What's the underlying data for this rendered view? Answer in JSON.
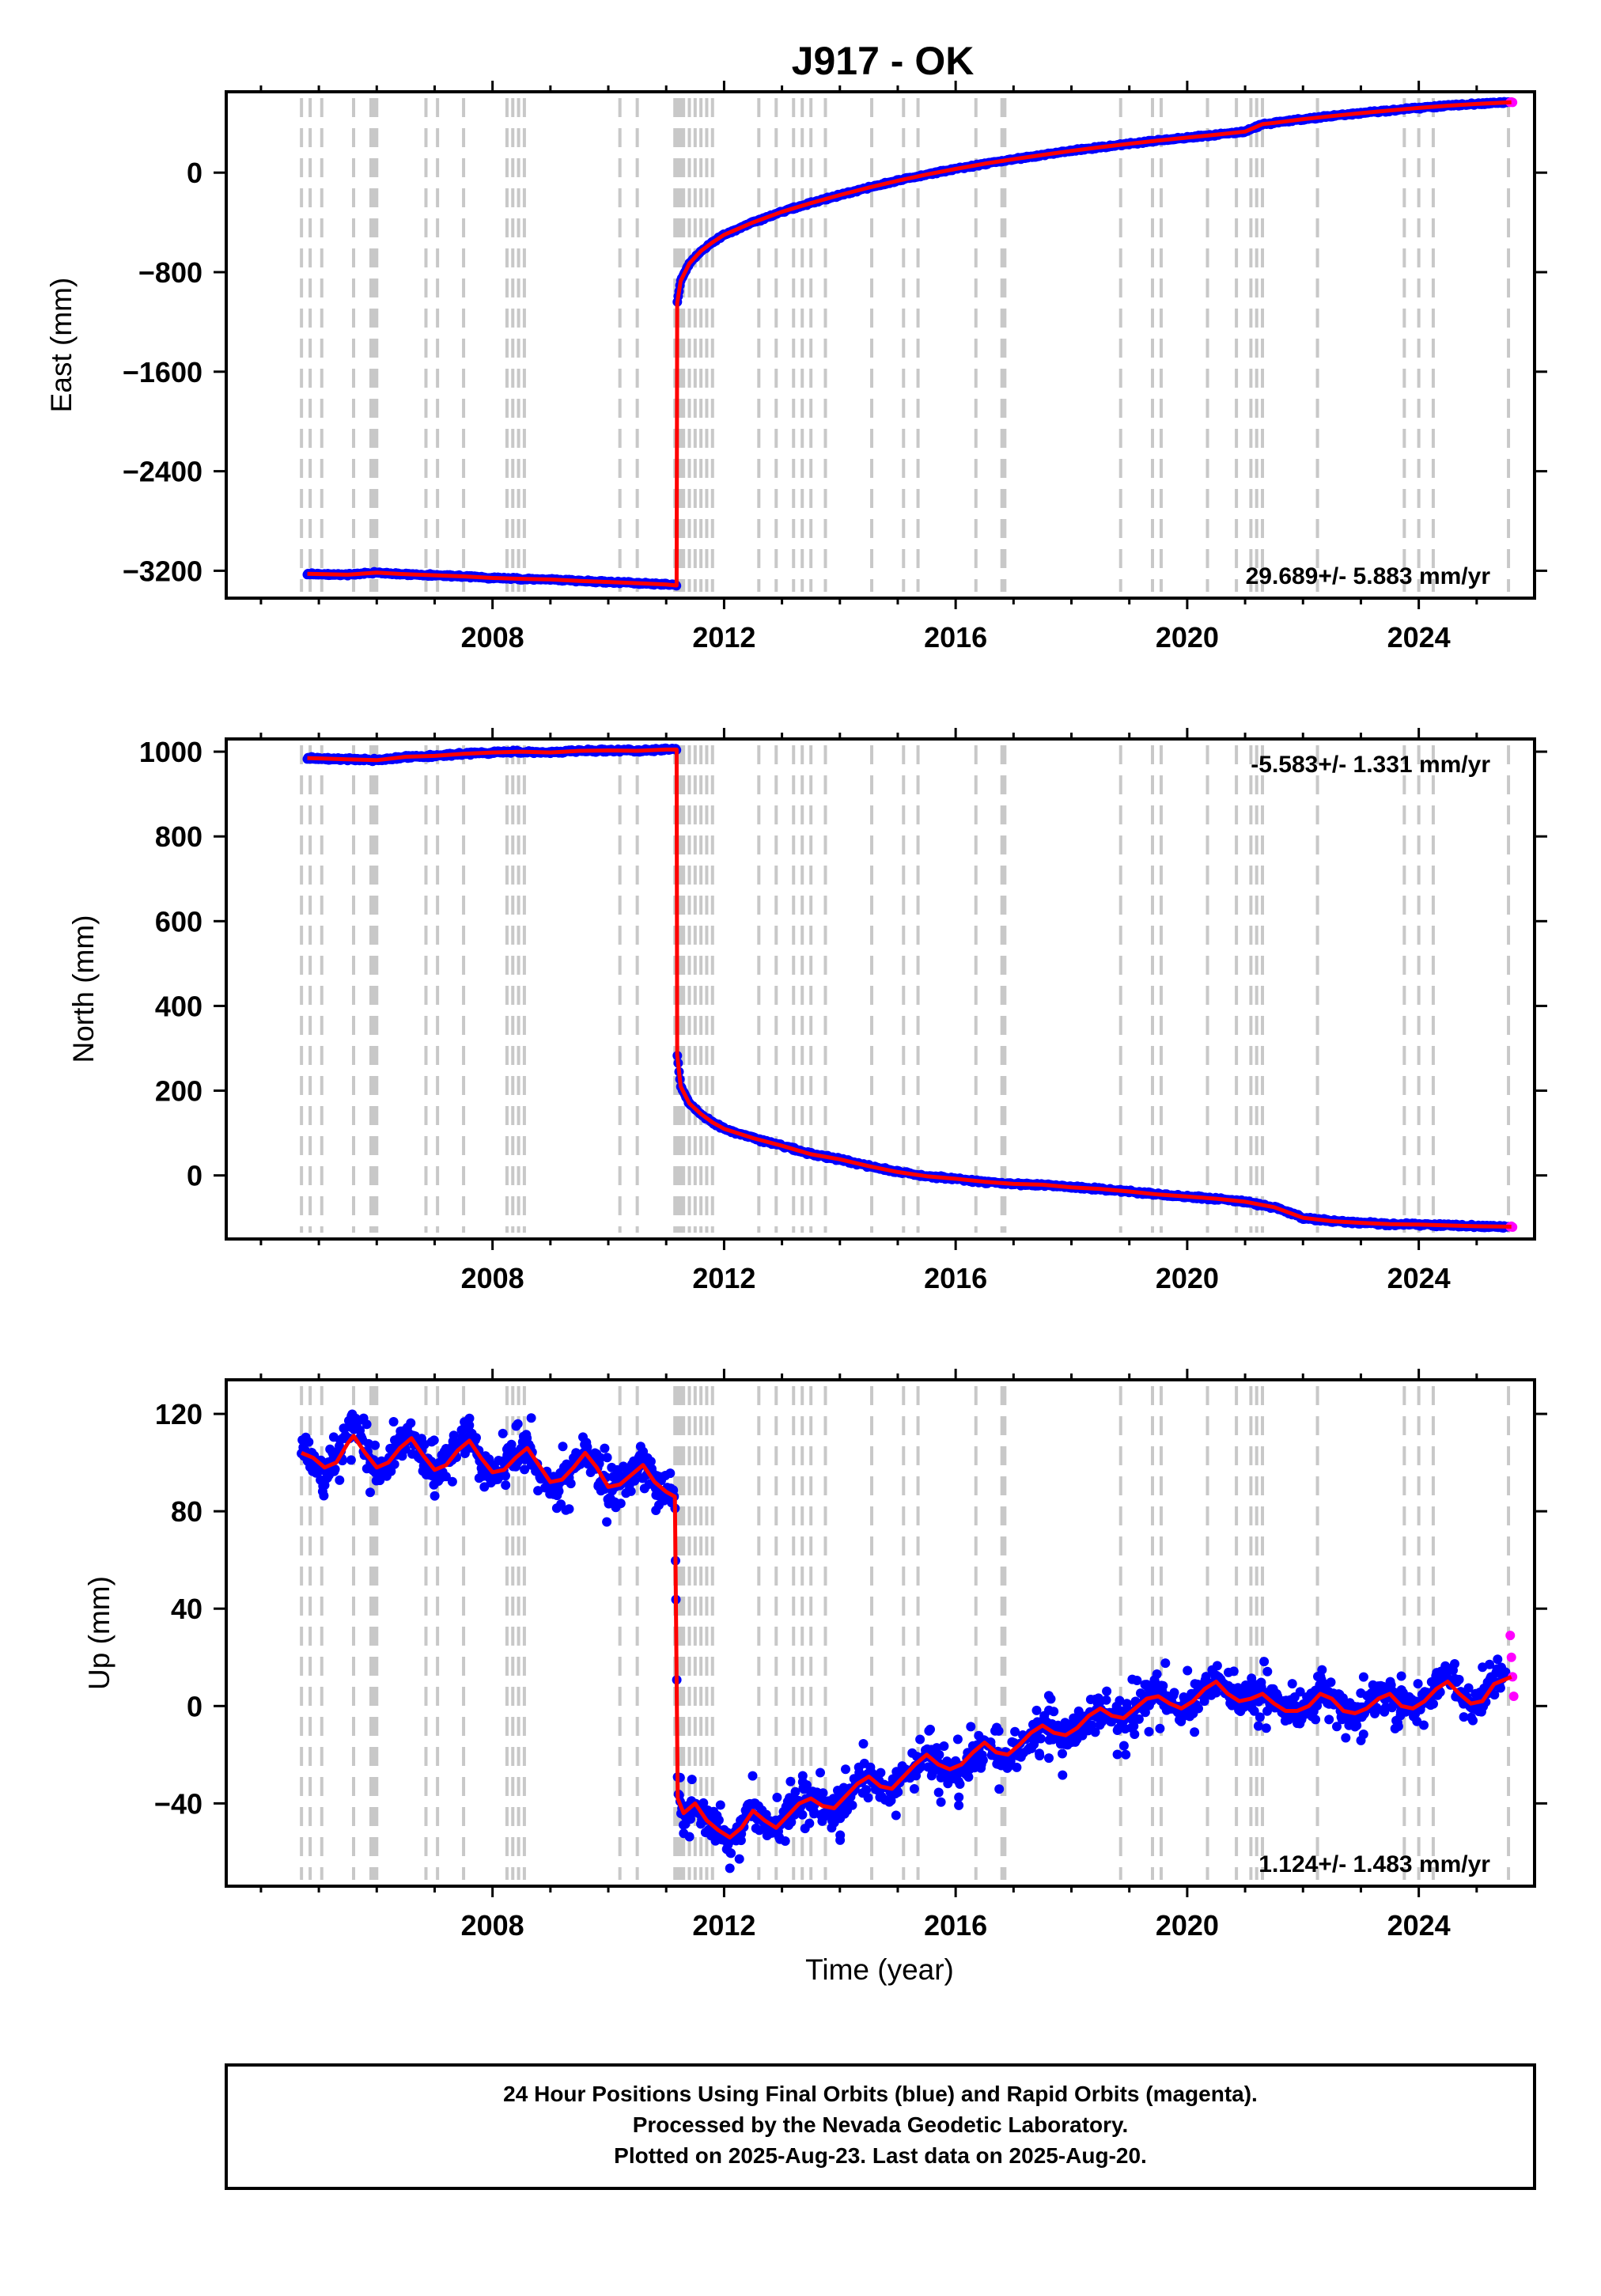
{
  "title": "J917 - OK",
  "x_axis_label": "Time (year)",
  "footer_lines": [
    "24 Hour Positions Using Final Orbits (blue) and Rapid Orbits (magenta).",
    "Processed by the Nevada Geodetic Laboratory.",
    "Plotted on 2025-Aug-23. Last data on 2025-Aug-20."
  ],
  "colors": {
    "final_orbits": "#0000ff",
    "rapid_orbits": "#ff00ff",
    "model_fit": "#ff0000",
    "events": "#c8c8c8",
    "frame": "#000000"
  },
  "chart_data": [
    {
      "type": "scatter",
      "panel": "east",
      "ylabel": "East (mm)",
      "xlabel": "",
      "xlim": [
        2003.4,
        2026.0
      ],
      "ylim": [
        -3420,
        650
      ],
      "xticks": [
        2008,
        2012,
        2016,
        2020,
        2024
      ],
      "xtick_labels": [
        "2008",
        "2012",
        "2016",
        "2020",
        "2024"
      ],
      "yticks": [
        0,
        -800,
        -1600,
        -2400,
        -3200
      ],
      "ytick_labels": [
        "0",
        "−800",
        "−1600",
        "−2400",
        "−3200"
      ],
      "rate_label": "29.689+/- 5.883 mm/yr",
      "rate_position": "bottom-right",
      "grid": false,
      "series": [
        {
          "role": "final",
          "x": [
            2004.8,
            2005.5,
            2006.0,
            2006.5,
            2007.0,
            2007.5,
            2008.0,
            2008.5,
            2009.0,
            2009.5,
            2010.0,
            2010.5,
            2011.0,
            2011.18,
            2011.19,
            2011.25,
            2011.4,
            2011.6,
            2011.8,
            2012.0,
            2012.5,
            2013.0,
            2013.5,
            2014.0,
            2014.5,
            2015.0,
            2015.5,
            2016.0,
            2016.5,
            2017.0,
            2017.5,
            2018.0,
            2018.5,
            2019.0,
            2019.5,
            2020.0,
            2020.5,
            2021.0,
            2021.3,
            2021.5,
            2022.0,
            2022.5,
            2023.0,
            2023.5,
            2024.0,
            2024.5,
            2025.0,
            2025.55
          ],
          "y": [
            -3225,
            -3232,
            -3215,
            -3228,
            -3236,
            -3245,
            -3258,
            -3265,
            -3270,
            -3282,
            -3290,
            -3300,
            -3310,
            -3318,
            -1050,
            -870,
            -730,
            -630,
            -560,
            -500,
            -400,
            -315,
            -245,
            -180,
            -120,
            -65,
            -15,
            30,
            72,
            108,
            142,
            175,
            205,
            232,
            258,
            282,
            305,
            330,
            390,
            400,
            430,
            455,
            478,
            500,
            520,
            538,
            552,
            565
          ]
        },
        {
          "role": "rapid",
          "x": [
            2025.58,
            2025.6,
            2025.62
          ],
          "y": [
            566,
            568,
            565
          ]
        },
        {
          "role": "model",
          "x": [
            2004.8,
            2005.5,
            2006.0,
            2006.5,
            2007.0,
            2007.5,
            2008.0,
            2008.5,
            2009.0,
            2009.5,
            2010.0,
            2010.5,
            2011.0,
            2011.18,
            2011.19,
            2011.25,
            2011.4,
            2011.6,
            2011.8,
            2012.0,
            2012.5,
            2013.0,
            2013.5,
            2014.0,
            2014.5,
            2015.0,
            2015.5,
            2016.0,
            2016.5,
            2017.0,
            2017.5,
            2018.0,
            2018.5,
            2019.0,
            2019.5,
            2020.0,
            2020.5,
            2021.0,
            2021.3,
            2021.5,
            2022.0,
            2022.5,
            2023.0,
            2023.5,
            2024.0,
            2024.5,
            2025.0,
            2025.6
          ],
          "y": [
            -3225,
            -3232,
            -3215,
            -3228,
            -3236,
            -3245,
            -3258,
            -3265,
            -3270,
            -3282,
            -3290,
            -3300,
            -3310,
            -3318,
            -1050,
            -870,
            -730,
            -630,
            -560,
            -500,
            -400,
            -315,
            -245,
            -180,
            -120,
            -65,
            -15,
            30,
            72,
            108,
            142,
            175,
            205,
            232,
            258,
            282,
            305,
            330,
            390,
            400,
            430,
            455,
            478,
            500,
            520,
            538,
            552,
            566
          ]
        }
      ]
    },
    {
      "type": "scatter",
      "panel": "north",
      "ylabel": "North (mm)",
      "xlabel": "",
      "xlim": [
        2003.4,
        2026.0
      ],
      "ylim": [
        -150,
        1030
      ],
      "xticks": [
        2008,
        2012,
        2016,
        2020,
        2024
      ],
      "xtick_labels": [
        "2008",
        "2012",
        "2016",
        "2020",
        "2024"
      ],
      "yticks": [
        0,
        200,
        400,
        600,
        800,
        1000
      ],
      "ytick_labels": [
        "0",
        "200",
        "400",
        "600",
        "800",
        "1000"
      ],
      "rate_label": "-5.583+/- 1.331 mm/yr",
      "rate_position": "top-right",
      "grid": false,
      "series": [
        {
          "role": "final",
          "x": [
            2004.8,
            2005.5,
            2006.0,
            2006.5,
            2007.0,
            2007.5,
            2008.0,
            2008.5,
            2009.0,
            2009.5,
            2010.0,
            2010.5,
            2011.0,
            2011.18,
            2011.19,
            2011.25,
            2011.4,
            2011.6,
            2011.8,
            2012.0,
            2012.5,
            2013.0,
            2013.5,
            2014.0,
            2014.5,
            2015.0,
            2015.5,
            2016.0,
            2016.5,
            2017.0,
            2017.5,
            2018.0,
            2018.5,
            2019.0,
            2019.5,
            2020.0,
            2020.5,
            2021.0,
            2021.5,
            2022.0,
            2022.5,
            2023.0,
            2023.5,
            2024.0,
            2024.5,
            2025.0,
            2025.55
          ],
          "y": [
            985,
            982,
            980,
            988,
            990,
            995,
            998,
            1000,
            998,
            1002,
            1003,
            1002,
            1005,
            1005,
            285,
            210,
            170,
            145,
            125,
            110,
            88,
            70,
            50,
            38,
            22,
            8,
            -2,
            -8,
            -15,
            -20,
            -22,
            -28,
            -32,
            -38,
            -45,
            -50,
            -55,
            -62,
            -75,
            -100,
            -108,
            -112,
            -115,
            -116,
            -118,
            -120,
            -122
          ]
        },
        {
          "role": "rapid",
          "x": [
            2025.58,
            2025.6,
            2025.62
          ],
          "y": [
            -121,
            -120,
            -122
          ]
        },
        {
          "role": "model",
          "x": [
            2004.8,
            2005.5,
            2006.0,
            2006.5,
            2007.0,
            2007.5,
            2008.0,
            2008.5,
            2009.0,
            2009.5,
            2010.0,
            2010.5,
            2011.0,
            2011.18,
            2011.19,
            2011.25,
            2011.4,
            2011.6,
            2011.8,
            2012.0,
            2012.5,
            2013.0,
            2013.5,
            2014.0,
            2014.5,
            2015.0,
            2015.5,
            2016.0,
            2016.5,
            2017.0,
            2017.5,
            2018.0,
            2018.5,
            2019.0,
            2019.5,
            2020.0,
            2020.5,
            2021.0,
            2021.5,
            2022.0,
            2022.5,
            2023.0,
            2023.5,
            2024.0,
            2024.5,
            2025.0,
            2025.6
          ],
          "y": [
            985,
            982,
            980,
            988,
            990,
            995,
            998,
            1000,
            998,
            1002,
            1003,
            1002,
            1005,
            1005,
            285,
            210,
            170,
            145,
            125,
            110,
            88,
            70,
            50,
            38,
            22,
            8,
            -2,
            -8,
            -15,
            -20,
            -22,
            -28,
            -32,
            -38,
            -45,
            -50,
            -55,
            -62,
            -75,
            -100,
            -108,
            -112,
            -115,
            -116,
            -118,
            -120,
            -121
          ]
        }
      ]
    },
    {
      "type": "scatter",
      "panel": "up",
      "ylabel": "Up (mm)",
      "xlabel": "Time (year)",
      "xlim": [
        2003.4,
        2026.0
      ],
      "ylim": [
        -74,
        134
      ],
      "xticks": [
        2008,
        2012,
        2016,
        2020,
        2024
      ],
      "xtick_labels": [
        "2008",
        "2012",
        "2016",
        "2020",
        "2024"
      ],
      "yticks": [
        -40,
        0,
        40,
        80,
        120
      ],
      "ytick_labels": [
        "−40",
        "0",
        "40",
        "80",
        "120"
      ],
      "rate_label": "1.124+/- 1.483 mm/yr",
      "rate_position": "bottom-right",
      "grid": false,
      "series": [
        {
          "role": "final",
          "x": [
            2004.7,
            2004.9,
            2005.1,
            2005.3,
            2005.5,
            2005.6,
            2005.8,
            2006.0,
            2006.2,
            2006.4,
            2006.6,
            2006.8,
            2007.0,
            2007.2,
            2007.4,
            2007.6,
            2007.8,
            2008.0,
            2008.2,
            2008.4,
            2008.6,
            2008.8,
            2009.0,
            2009.2,
            2009.4,
            2009.6,
            2009.8,
            2010.0,
            2010.2,
            2010.4,
            2010.6,
            2010.8,
            2011.0,
            2011.15,
            2011.2,
            2011.3,
            2011.5,
            2011.7,
            2011.9,
            2012.1,
            2012.3,
            2012.5,
            2012.7,
            2012.9,
            2013.1,
            2013.3,
            2013.5,
            2013.7,
            2013.9,
            2014.1,
            2014.3,
            2014.5,
            2014.7,
            2014.9,
            2015.1,
            2015.3,
            2015.5,
            2015.7,
            2015.9,
            2016.1,
            2016.3,
            2016.5,
            2016.7,
            2016.9,
            2017.1,
            2017.3,
            2017.5,
            2017.7,
            2017.9,
            2018.1,
            2018.3,
            2018.5,
            2018.7,
            2018.9,
            2019.1,
            2019.3,
            2019.5,
            2019.7,
            2019.9,
            2020.1,
            2020.3,
            2020.5,
            2020.7,
            2020.9,
            2021.1,
            2021.3,
            2021.5,
            2021.7,
            2021.9,
            2022.1,
            2022.3,
            2022.5,
            2022.7,
            2022.9,
            2023.1,
            2023.3,
            2023.5,
            2023.7,
            2023.9,
            2024.1,
            2024.3,
            2024.5,
            2024.7,
            2024.9,
            2025.1,
            2025.3,
            2025.5
          ],
          "y": [
            108,
            100,
            95,
            102,
            112,
            118,
            104,
            96,
            100,
            108,
            113,
            102,
            95,
            100,
            108,
            111,
            102,
            94,
            98,
            104,
            108,
            96,
            90,
            92,
            98,
            106,
            98,
            88,
            90,
            96,
            102,
            92,
            85,
            86,
            -35,
            -48,
            -40,
            -46,
            -52,
            -55,
            -50,
            -42,
            -48,
            -52,
            -45,
            -40,
            -38,
            -42,
            -44,
            -38,
            -32,
            -28,
            -34,
            -36,
            -30,
            -25,
            -20,
            -24,
            -28,
            -26,
            -20,
            -16,
            -20,
            -22,
            -18,
            -12,
            -8,
            -12,
            -14,
            -10,
            -4,
            0,
            -4,
            -6,
            -2,
            4,
            6,
            2,
            -2,
            2,
            8,
            12,
            6,
            2,
            4,
            6,
            2,
            -2,
            -2,
            0,
            6,
            4,
            -2,
            -4,
            -2,
            4,
            6,
            0,
            -2,
            2,
            8,
            12,
            6,
            0,
            2,
            10,
            12
          ]
        },
        {
          "role": "rapid",
          "x": [
            2025.58,
            2025.6,
            2025.62,
            2025.64
          ],
          "y": [
            29,
            20,
            12,
            4
          ]
        },
        {
          "role": "model",
          "x": [
            2004.7,
            2004.9,
            2005.1,
            2005.3,
            2005.5,
            2005.6,
            2005.8,
            2006.0,
            2006.2,
            2006.4,
            2006.6,
            2006.8,
            2007.0,
            2007.2,
            2007.4,
            2007.6,
            2007.8,
            2008.0,
            2008.2,
            2008.4,
            2008.6,
            2008.8,
            2009.0,
            2009.2,
            2009.4,
            2009.6,
            2009.8,
            2010.0,
            2010.2,
            2010.4,
            2010.6,
            2010.8,
            2011.0,
            2011.15,
            2011.2,
            2011.3,
            2011.5,
            2011.7,
            2011.9,
            2012.1,
            2012.3,
            2012.5,
            2012.7,
            2012.9,
            2013.1,
            2013.3,
            2013.5,
            2013.7,
            2013.9,
            2014.1,
            2014.3,
            2014.5,
            2014.7,
            2014.9,
            2015.1,
            2015.3,
            2015.5,
            2015.7,
            2015.9,
            2016.1,
            2016.3,
            2016.5,
            2016.7,
            2016.9,
            2017.1,
            2017.3,
            2017.5,
            2017.7,
            2017.9,
            2018.1,
            2018.3,
            2018.5,
            2018.7,
            2018.9,
            2019.1,
            2019.3,
            2019.5,
            2019.7,
            2019.9,
            2020.1,
            2020.3,
            2020.5,
            2020.7,
            2020.9,
            2021.1,
            2021.3,
            2021.5,
            2021.7,
            2021.9,
            2022.1,
            2022.3,
            2022.5,
            2022.7,
            2022.9,
            2023.1,
            2023.3,
            2023.5,
            2023.7,
            2023.9,
            2024.1,
            2024.3,
            2024.5,
            2024.7,
            2024.9,
            2025.1,
            2025.3,
            2025.6
          ],
          "y": [
            104,
            102,
            98,
            100,
            108,
            111,
            104,
            98,
            100,
            106,
            110,
            103,
            97,
            99,
            105,
            109,
            102,
            96,
            97,
            102,
            106,
            99,
            92,
            93,
            98,
            104,
            98,
            90,
            91,
            95,
            99,
            92,
            88,
            86,
            -38,
            -44,
            -40,
            -47,
            -51,
            -54,
            -50,
            -43,
            -47,
            -50,
            -45,
            -40,
            -38,
            -41,
            -42,
            -37,
            -32,
            -29,
            -33,
            -34,
            -29,
            -24,
            -20,
            -24,
            -26,
            -24,
            -19,
            -15,
            -19,
            -20,
            -16,
            -11,
            -8,
            -11,
            -12,
            -9,
            -4,
            -1,
            -4,
            -5,
            -1,
            3,
            4,
            1,
            -1,
            2,
            7,
            10,
            5,
            2,
            3,
            5,
            1,
            -2,
            -2,
            0,
            5,
            3,
            -2,
            -3,
            -1,
            3,
            5,
            0,
            -1,
            2,
            7,
            10,
            5,
            1,
            2,
            9,
            12
          ]
        }
      ]
    }
  ],
  "events": [
    2004.7,
    2004.85,
    2005.05,
    2005.6,
    2005.9,
    2005.95,
    2006.0,
    2006.85,
    2007.05,
    2007.5,
    2008.25,
    2008.35,
    2008.45,
    2008.55,
    2010.2,
    2010.5,
    2011.15,
    2011.2,
    2011.25,
    2011.3,
    2011.4,
    2011.5,
    2011.6,
    2011.7,
    2011.8,
    2012.6,
    2012.9,
    2013.2,
    2013.35,
    2013.5,
    2013.75,
    2014.55,
    2015.1,
    2015.35,
    2016.35,
    2016.8,
    2016.85,
    2018.85,
    2019.4,
    2019.55,
    2020.35,
    2020.85,
    2021.1,
    2021.2,
    2021.3,
    2022.25,
    2023.75,
    2024.0,
    2024.25,
    2025.55
  ]
}
